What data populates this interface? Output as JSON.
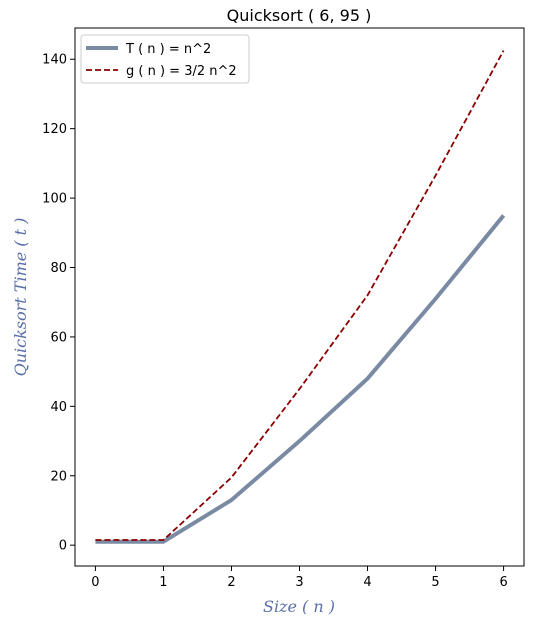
{
  "chart_data": {
    "type": "line",
    "title": "Quicksort ( 6, 95 )",
    "xlabel": "Size ( n )",
    "ylabel": "Quicksort Time ( t )",
    "xlim": [
      -0.3,
      6.3
    ],
    "ylim": [
      -6,
      149
    ],
    "xticks": [
      0,
      1,
      2,
      3,
      4,
      5,
      6
    ],
    "yticks": [
      0,
      20,
      40,
      60,
      80,
      100,
      120,
      140
    ],
    "grid": false,
    "legend": "top-left",
    "x": [
      0,
      1,
      2,
      3,
      4,
      5,
      6
    ],
    "series": [
      {
        "name": "T ( n ) = n^2",
        "values": [
          1,
          1,
          13,
          30,
          48,
          71,
          95
        ],
        "color": "#7a8aa3",
        "style": "solid"
      },
      {
        "name": "g ( n ) = 3/2 n^2",
        "values": [
          1.5,
          1.5,
          19.5,
          45,
          72,
          106.5,
          142.5
        ],
        "color": "#8b0000",
        "style": "dashed"
      }
    ],
    "label_color": "#5a6fa8"
  }
}
